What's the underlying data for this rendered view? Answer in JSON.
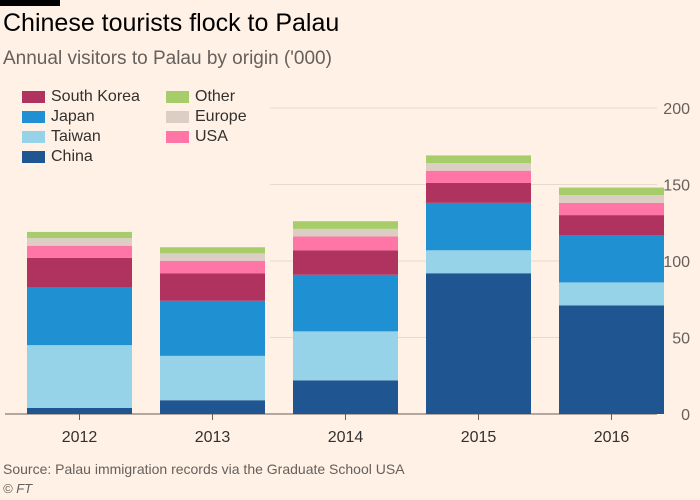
{
  "title": "Chinese tourists flock to Palau",
  "subtitle": "Annual visitors to Palau by origin ('000)",
  "source": "Source: Palau immigration records via the Graduate School USA",
  "credit": "© FT",
  "colors": {
    "background": "#fff1e5",
    "grid": "#e6d9ce"
  },
  "chart_data": {
    "type": "bar",
    "stacked": true,
    "categories": [
      "2012",
      "2013",
      "2014",
      "2015",
      "2016"
    ],
    "ylim": [
      0,
      200
    ],
    "yticks": [
      "0",
      "50",
      "100",
      "150",
      "200"
    ],
    "ytick_values": [
      0,
      50,
      100,
      150,
      200
    ],
    "xlabel": "",
    "ylabel": "",
    "legend": "top-left",
    "series": [
      {
        "name": "China",
        "color": "#1f5692",
        "values": [
          4,
          9,
          22,
          92,
          71
        ]
      },
      {
        "name": "Taiwan",
        "color": "#96d3e8",
        "values": [
          41,
          29,
          32,
          15,
          15
        ]
      },
      {
        "name": "Japan",
        "color": "#1f90d2",
        "values": [
          38,
          36,
          37,
          31,
          31
        ]
      },
      {
        "name": "South Korea",
        "color": "#b0325f",
        "values": [
          19,
          18,
          16,
          13,
          13
        ]
      },
      {
        "name": "USA",
        "color": "#ff75a6",
        "values": [
          8,
          8,
          9,
          8,
          8
        ]
      },
      {
        "name": "Europe",
        "color": "#dccec4",
        "values": [
          5,
          5,
          5,
          5,
          5
        ]
      },
      {
        "name": "Other",
        "color": "#a7cd6b",
        "values": [
          4,
          4,
          5,
          5,
          5
        ]
      }
    ],
    "legend_order": [
      "South Korea",
      "Other",
      "Japan",
      "Europe",
      "Taiwan",
      "USA",
      "China"
    ]
  }
}
